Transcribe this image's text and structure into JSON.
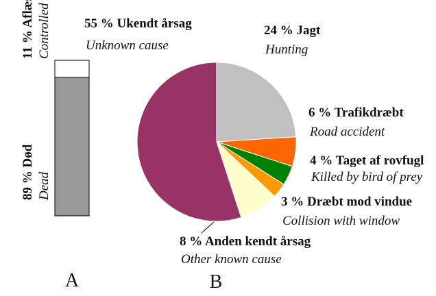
{
  "chart_data": [
    {
      "type": "stacked_bar",
      "panel": "A",
      "labels": [
        "Aflæst",
        "Død"
      ],
      "translations": [
        "Controlled",
        "Dead"
      ],
      "values": [
        11,
        89
      ],
      "value_labels": [
        "11 %",
        "89 %"
      ],
      "colors": [
        "#ffffff",
        "#999999"
      ]
    },
    {
      "type": "pie",
      "panel": "B",
      "labels": [
        "Jagt",
        "Trafikdræbt",
        "Taget af rovfugl",
        "Dræbt mod vindue",
        "Anden kendt årsag",
        "Ukendt årsag"
      ],
      "translations": [
        "Hunting",
        "Road accident",
        "Killed by bird of prey",
        "Collision with window",
        "Other known cause",
        "Unknown cause"
      ],
      "values": [
        24,
        6,
        4,
        3,
        8,
        55
      ],
      "value_labels": [
        "24 %",
        "6 %",
        "4 %",
        "3 %",
        "8 %",
        "55 %"
      ],
      "colors": [
        "#c0c0c0",
        "#ff6600",
        "#008000",
        "#ff9900",
        "#ffffcc",
        "#993366"
      ]
    }
  ]
}
